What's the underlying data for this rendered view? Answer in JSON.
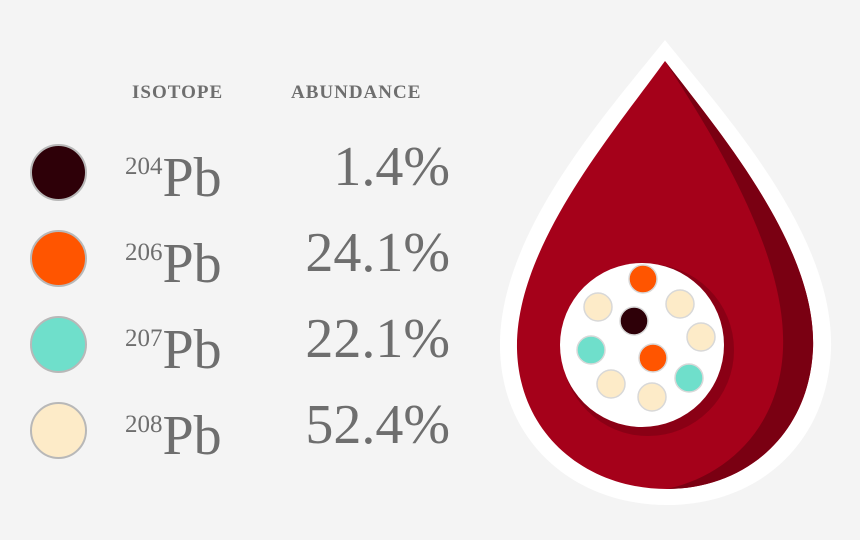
{
  "table": {
    "header_isotope": "ISOTOPE",
    "header_abundance": "ABUNDANCE",
    "rows": [
      {
        "mass": "204",
        "symbol": "Pb",
        "abundance": "1.4%",
        "color": "#2e0008"
      },
      {
        "mass": "206",
        "symbol": "Pb",
        "abundance": "24.1%",
        "color": "#ff5500"
      },
      {
        "mass": "207",
        "symbol": "Pb",
        "abundance": "22.1%",
        "color": "#6fdfcb"
      },
      {
        "mass": "208",
        "symbol": "Pb",
        "abundance": "52.4%",
        "color": "#fdebc8"
      }
    ]
  },
  "drop": {
    "fill_color": "#a5011a",
    "shade_color": "#7a0012",
    "outline_color": "#ffffff",
    "inner_circle_color": "#ffffff",
    "dots": [
      {
        "isotope": "206",
        "color": "#ff5500"
      },
      {
        "isotope": "208",
        "color": "#fdebc8"
      },
      {
        "isotope": "208",
        "color": "#fdebc8"
      },
      {
        "isotope": "204",
        "color": "#2e0008"
      },
      {
        "isotope": "208",
        "color": "#fdebc8"
      },
      {
        "isotope": "207",
        "color": "#6fdfcb"
      },
      {
        "isotope": "206",
        "color": "#ff5500"
      },
      {
        "isotope": "208",
        "color": "#fdebc8"
      },
      {
        "isotope": "207",
        "color": "#6fdfcb"
      },
      {
        "isotope": "208",
        "color": "#fdebc8"
      }
    ]
  }
}
